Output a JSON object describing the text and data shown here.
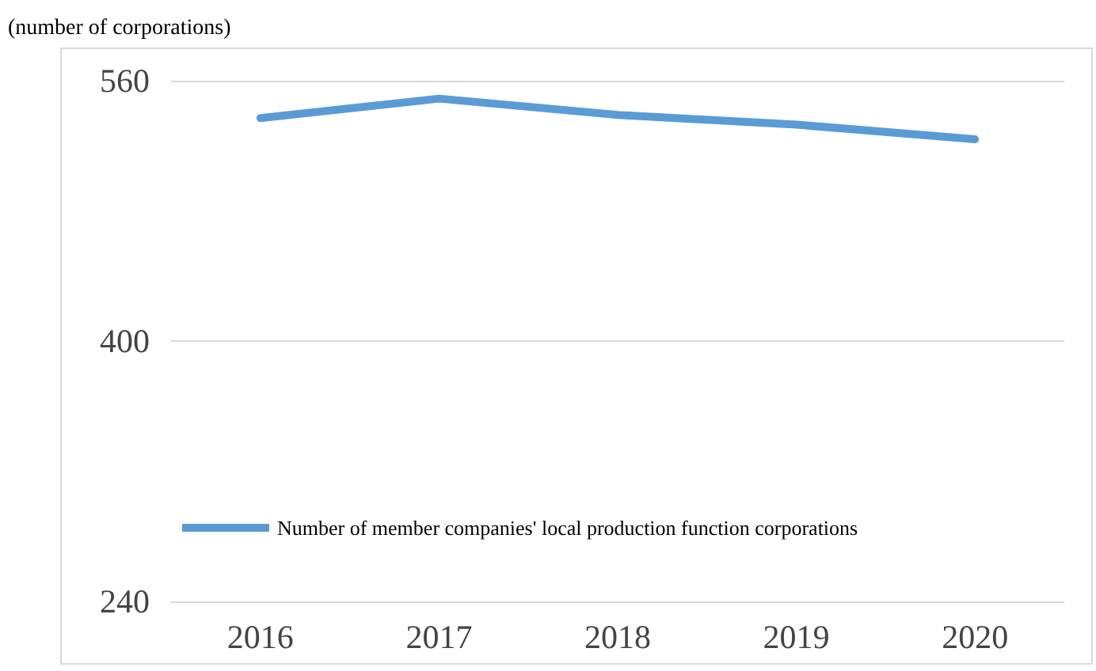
{
  "chart_data": {
    "type": "line",
    "ylabel": "(number of corporations)",
    "categories": [
      "2016",
      "2017",
      "2018",
      "2019",
      "2020"
    ],
    "series": [
      {
        "name": "Number of member companies' local production function corporations",
        "color": "#5b9bd5",
        "values": [
          537,
          549,
          539,
          533,
          524
        ]
      }
    ],
    "ylim": [
      240,
      560
    ],
    "yticks": [
      240,
      400,
      560
    ],
    "grid": "y",
    "legend": "bottom",
    "marker": "none",
    "line_style": "solid"
  }
}
